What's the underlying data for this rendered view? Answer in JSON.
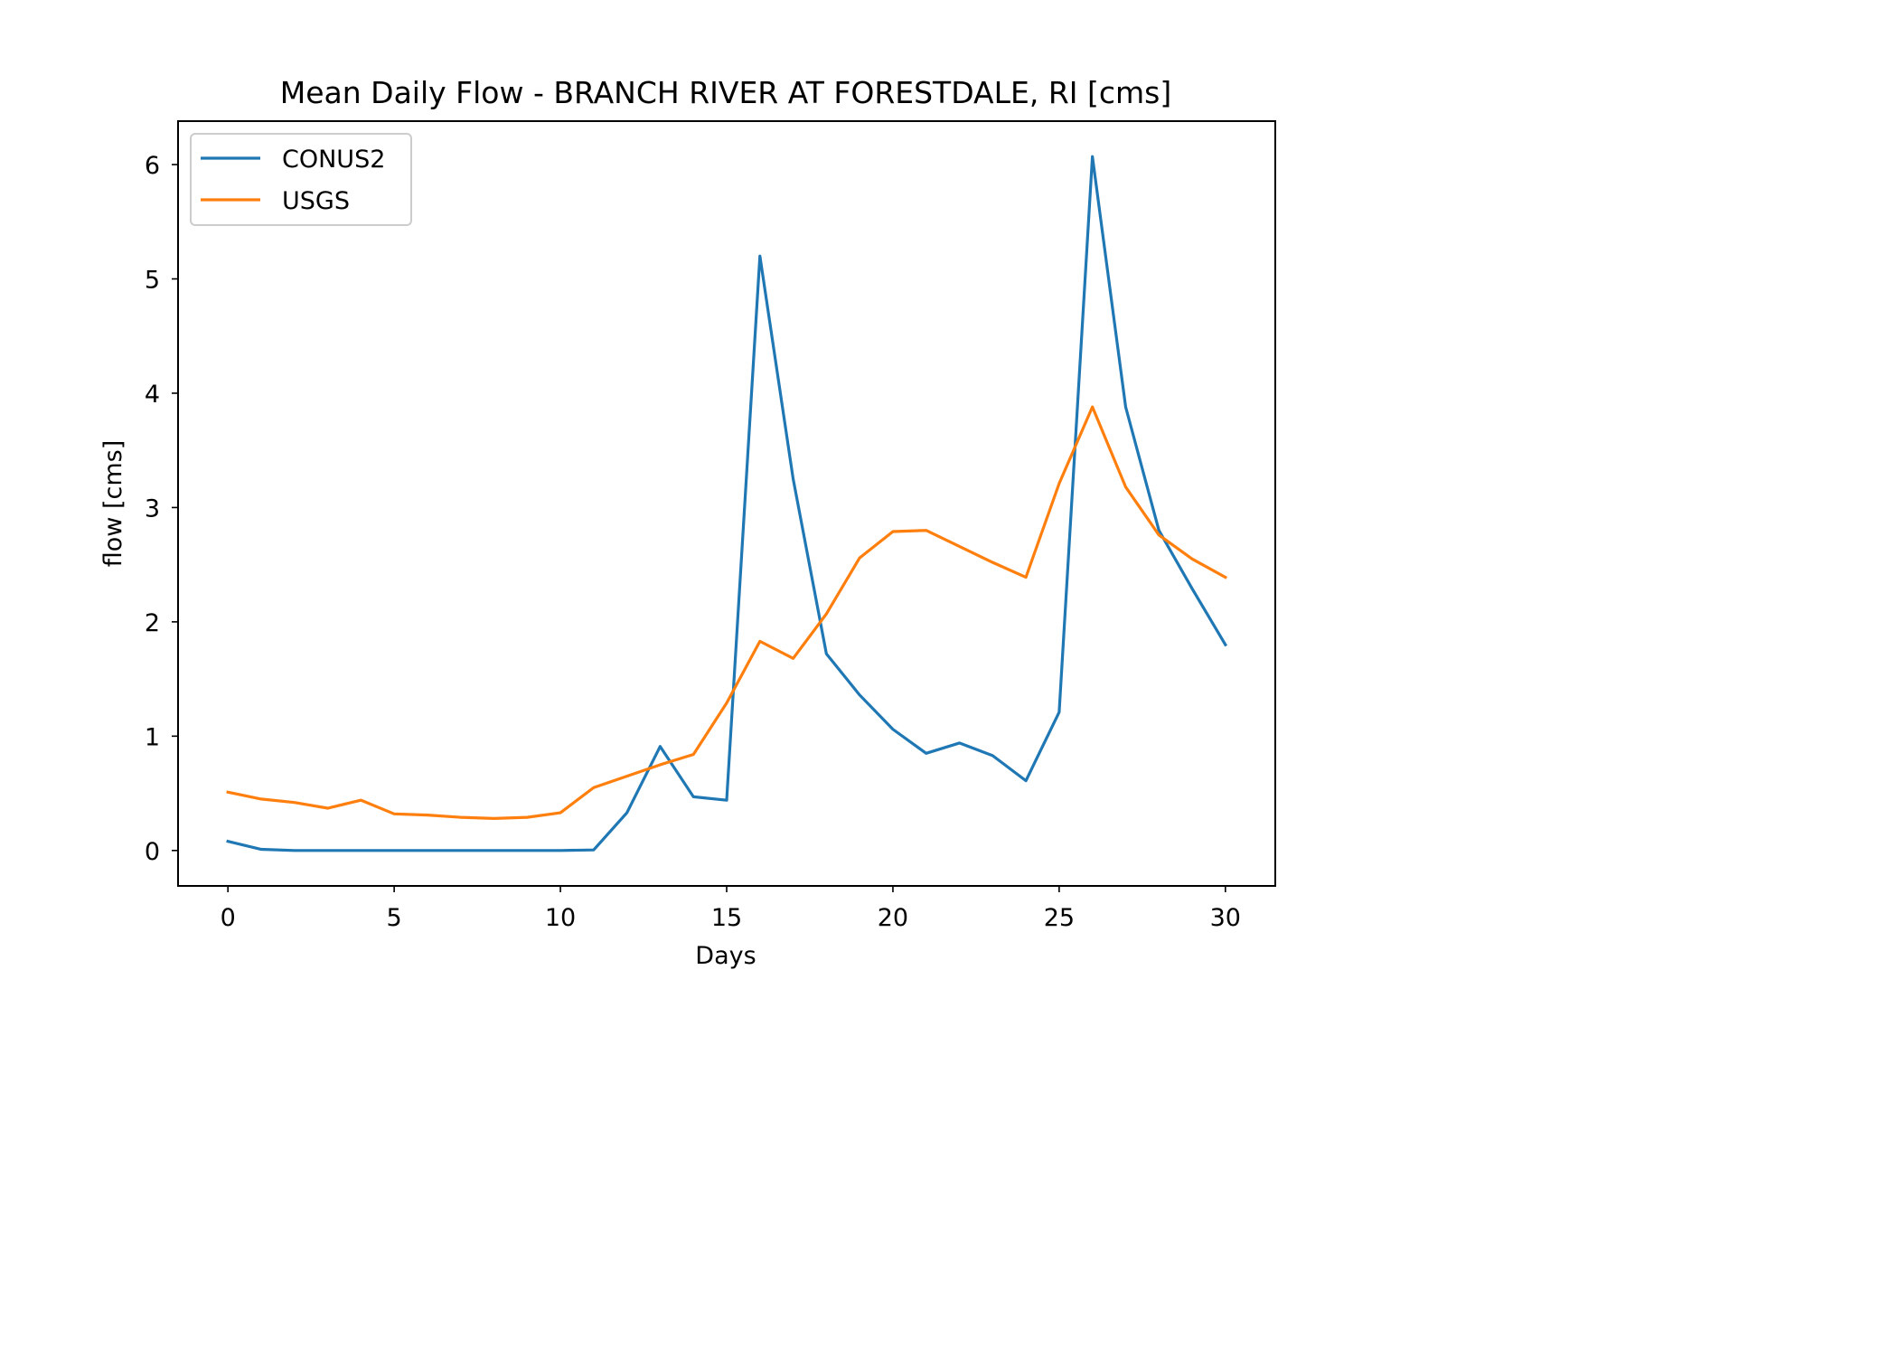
{
  "chart_data": {
    "type": "line",
    "title": "Mean Daily Flow - BRANCH RIVER AT FORESTDALE, RI [cms]",
    "xlabel": "Days",
    "ylabel": "flow [cms]",
    "xlim": [
      -1.5,
      31.5
    ],
    "ylim": [
      -0.31,
      6.38
    ],
    "xticks": [
      0,
      5,
      10,
      15,
      20,
      25,
      30
    ],
    "yticks": [
      0,
      1,
      2,
      3,
      4,
      5,
      6
    ],
    "grid": false,
    "legend_position": "upper left",
    "x": [
      0,
      1,
      2,
      3,
      4,
      5,
      6,
      7,
      8,
      9,
      10,
      11,
      12,
      13,
      14,
      15,
      16,
      17,
      18,
      19,
      20,
      21,
      22,
      23,
      24,
      25,
      26,
      27,
      28,
      29,
      30
    ],
    "series": [
      {
        "name": "CONUS2",
        "color": "#1f77b4",
        "values": [
          0.08,
          0.01,
          0.0,
          0.0,
          0.0,
          0.0,
          0.0,
          0.0,
          0.0,
          0.0,
          0.0,
          0.005,
          0.33,
          0.91,
          0.47,
          0.44,
          5.2,
          3.25,
          1.72,
          1.36,
          1.06,
          0.85,
          0.94,
          0.83,
          0.61,
          1.21,
          6.07,
          3.88,
          2.8,
          2.29,
          1.8
        ]
      },
      {
        "name": "USGS",
        "color": "#ff7f0e",
        "values": [
          0.51,
          0.45,
          0.42,
          0.37,
          0.44,
          0.32,
          0.31,
          0.29,
          0.28,
          0.29,
          0.33,
          0.55,
          0.65,
          0.75,
          0.84,
          1.29,
          1.83,
          1.68,
          2.07,
          2.56,
          2.79,
          2.8,
          2.66,
          2.52,
          2.39,
          3.21,
          3.88,
          3.18,
          2.76,
          2.55,
          2.39
        ]
      }
    ]
  }
}
